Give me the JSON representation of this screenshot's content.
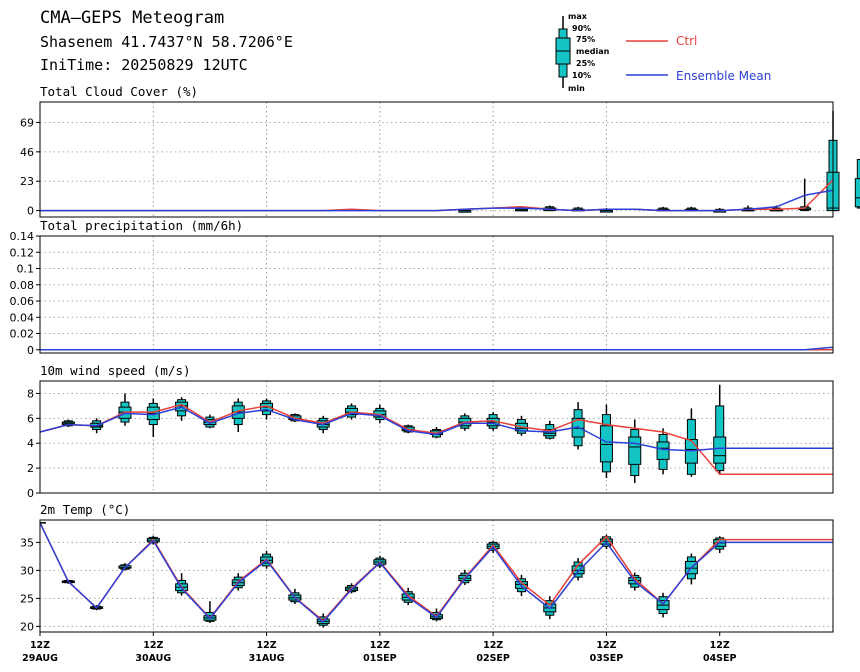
{
  "header": {
    "title": "CMA—GEPS Meteogram",
    "location": "Shasenem 41.7437°N 58.7206°E",
    "init_time": "IniTime: 20250829 12UTC"
  },
  "legend": {
    "box_labels": [
      "max",
      "90%",
      "75%",
      "median",
      "25%",
      "10%",
      "min"
    ],
    "ctrl_label": "Ctrl",
    "mean_label": "Ensemble Mean",
    "ctrl_color": "#e8403a",
    "mean_color": "#2d3fd6",
    "box_color": "#14c4c4"
  },
  "x_axis": {
    "tick_labels": [
      [
        "12Z",
        "29AUG"
      ],
      [
        "12Z",
        "30AUG"
      ],
      [
        "12Z",
        "31AUG"
      ],
      [
        "12Z",
        "01SEP"
      ],
      [
        "12Z",
        "02SEP"
      ],
      [
        "12Z",
        "03SEP"
      ],
      [
        "12Z",
        "04SEP"
      ]
    ]
  },
  "chart_data": [
    {
      "type": "line",
      "title": "Total Cloud Cover (%)",
      "ylim": [
        -5,
        85
      ],
      "yticks": [
        "0",
        "23",
        "46",
        "69"
      ],
      "x_hours": [
        0,
        6,
        12,
        18,
        24,
        30,
        36,
        42,
        48,
        54,
        60,
        66,
        72,
        78,
        84,
        90,
        96,
        102,
        108,
        114,
        120,
        126,
        132,
        138,
        144,
        150,
        156,
        162,
        168
      ],
      "series": [
        {
          "name": "Ctrl",
          "values": [
            0,
            0,
            0,
            0,
            0,
            0,
            0,
            0,
            0,
            0,
            0,
            1,
            0,
            0,
            0,
            1,
            2,
            3,
            1,
            0,
            1,
            1,
            0,
            0,
            0,
            1,
            1,
            2,
            24
          ]
        },
        {
          "name": "Ensemble Mean",
          "values": [
            0,
            0,
            0,
            0,
            0,
            0,
            0,
            0,
            0,
            0,
            0,
            0,
            0,
            0,
            0,
            1,
            2,
            2,
            1,
            0,
            1,
            1,
            0,
            0,
            0,
            1,
            3,
            12,
            16
          ]
        }
      ],
      "boxes": [
        [
          15,
          0,
          0,
          0,
          0,
          0,
          0,
          0
        ],
        [
          17,
          0,
          0,
          0,
          0,
          1,
          2,
          3
        ],
        [
          18,
          0,
          0,
          0,
          1,
          2,
          3,
          4
        ],
        [
          19,
          0,
          0,
          0,
          0,
          1,
          2,
          3
        ],
        [
          20,
          0,
          0,
          0,
          0,
          0,
          1,
          2
        ],
        [
          22,
          0,
          0,
          0,
          1,
          1,
          2,
          3
        ],
        [
          23,
          0,
          0,
          0,
          1,
          1,
          2,
          3
        ],
        [
          24,
          0,
          0,
          0,
          0,
          0,
          1,
          2
        ],
        [
          25,
          0,
          0,
          0,
          0,
          1,
          2,
          4
        ],
        [
          26,
          0,
          0,
          0,
          0,
          1,
          2,
          4
        ],
        [
          27,
          0,
          0,
          1,
          1,
          2,
          3,
          25
        ],
        [
          28,
          0,
          0,
          0,
          2,
          30,
          55,
          78
        ],
        [
          29,
          0,
          2,
          3,
          10,
          25,
          40,
          40
        ]
      ]
    },
    {
      "type": "line",
      "title": "Total precipitation (mm/6h)",
      "ylim": [
        -0.004,
        0.14
      ],
      "yticks": [
        "0",
        "0.02",
        "0.04",
        "0.06",
        "0.08",
        "0.1",
        "0.12",
        "0.14"
      ],
      "x_hours": [
        0,
        6,
        12,
        18,
        24,
        30,
        36,
        42,
        48,
        54,
        60,
        66,
        72,
        78,
        84,
        90,
        96,
        102,
        108,
        114,
        120,
        126,
        132,
        138,
        144,
        150,
        156,
        162,
        168
      ],
      "series": [
        {
          "name": "Ctrl",
          "values": [
            0,
            0,
            0,
            0,
            0,
            0,
            0,
            0,
            0,
            0,
            0,
            0,
            0,
            0,
            0,
            0,
            0,
            0,
            0,
            0,
            0,
            0,
            0,
            0,
            0,
            0,
            0,
            0,
            0
          ]
        },
        {
          "name": "Ensemble Mean",
          "values": [
            0,
            0,
            0,
            0,
            0,
            0,
            0,
            0,
            0,
            0,
            0,
            0,
            0,
            0,
            0,
            0,
            0,
            0,
            0,
            0,
            0,
            0,
            0,
            0,
            0,
            0,
            0,
            0,
            0.003
          ]
        }
      ],
      "boxes": []
    },
    {
      "type": "line",
      "title": "10m wind speed (m/s)",
      "ylim": [
        0,
        9
      ],
      "yticks": [
        "0",
        "2",
        "4",
        "6",
        "8"
      ],
      "x_hours": [
        0,
        6,
        12,
        18,
        24,
        30,
        36,
        42,
        48,
        54,
        60,
        66,
        72,
        78,
        84,
        90,
        96,
        102,
        108,
        114,
        120,
        126,
        132,
        138,
        144,
        150,
        156,
        162,
        168
      ],
      "series": [
        {
          "name": "Ctrl",
          "values": [
            4.9,
            5.5,
            5.4,
            6.5,
            6.5,
            7.1,
            5.7,
            6.6,
            7.0,
            6.0,
            5.6,
            6.5,
            6.3,
            5.1,
            4.8,
            5.7,
            5.8,
            5.3,
            5.0,
            5.9,
            5.5,
            5.2,
            4.9,
            4.2,
            1.5,
            1.5,
            1.5,
            1.5,
            1.5
          ]
        },
        {
          "name": "Ensemble Mean",
          "values": [
            4.9,
            5.5,
            5.4,
            6.4,
            6.3,
            6.9,
            5.6,
            6.4,
            6.7,
            5.9,
            5.5,
            6.4,
            6.2,
            5.0,
            4.7,
            5.6,
            5.6,
            5.0,
            4.9,
            5.3,
            4.1,
            4.0,
            3.5,
            3.4,
            3.6,
            3.6,
            3.6,
            3.6,
            3.6
          ]
        }
      ],
      "boxes": [
        [
          1,
          5.3,
          5.4,
          5.5,
          5.6,
          5.7,
          5.8,
          5.9
        ],
        [
          2,
          4.8,
          5.1,
          5.3,
          5.4,
          5.6,
          5.8,
          6.0
        ],
        [
          3,
          5.4,
          5.7,
          6.0,
          6.5,
          6.9,
          7.3,
          8.0
        ],
        [
          4,
          4.5,
          5.5,
          5.9,
          6.4,
          6.9,
          7.2,
          7.6
        ],
        [
          5,
          5.8,
          6.2,
          6.6,
          7.0,
          7.3,
          7.5,
          7.7
        ],
        [
          6,
          5.2,
          5.3,
          5.5,
          5.7,
          5.9,
          6.1,
          6.3
        ],
        [
          7,
          4.9,
          5.5,
          6.0,
          6.5,
          7.0,
          7.3,
          7.6
        ],
        [
          8,
          5.9,
          6.3,
          6.6,
          6.9,
          7.2,
          7.4,
          7.6
        ],
        [
          9,
          5.7,
          5.8,
          5.9,
          6.0,
          6.2,
          6.3,
          6.4
        ],
        [
          10,
          4.8,
          5.1,
          5.3,
          5.5,
          5.8,
          6.0,
          6.2
        ],
        [
          11,
          5.9,
          6.1,
          6.3,
          6.5,
          6.8,
          7.0,
          7.2
        ],
        [
          12,
          5.6,
          5.9,
          6.1,
          6.3,
          6.6,
          6.8,
          7.1
        ],
        [
          13,
          4.8,
          4.9,
          5.0,
          5.1,
          5.3,
          5.4,
          5.5
        ],
        [
          14,
          4.4,
          4.5,
          4.7,
          4.8,
          5.0,
          5.1,
          5.3
        ],
        [
          15,
          5.0,
          5.2,
          5.4,
          5.7,
          6.0,
          6.2,
          6.4
        ],
        [
          16,
          5.0,
          5.2,
          5.4,
          5.7,
          6.0,
          6.3,
          6.5
        ],
        [
          17,
          4.6,
          4.8,
          5.0,
          5.2,
          5.6,
          5.9,
          6.2
        ],
        [
          18,
          4.3,
          4.4,
          4.6,
          4.8,
          5.1,
          5.5,
          5.8
        ],
        [
          19,
          3.5,
          3.8,
          4.5,
          5.2,
          6.0,
          6.7,
          7.3
        ],
        [
          20,
          1.2,
          1.7,
          2.5,
          3.9,
          5.4,
          6.3,
          7.1
        ],
        [
          21,
          0.8,
          1.4,
          2.3,
          3.7,
          4.5,
          5.1,
          5.9
        ],
        [
          22,
          1.5,
          1.9,
          2.7,
          3.6,
          4.1,
          4.7,
          5.2
        ],
        [
          23,
          1.3,
          1.5,
          2.4,
          3.5,
          4.3,
          5.9,
          6.8
        ],
        [
          24,
          1.5,
          1.8,
          2.4,
          3.0,
          4.5,
          7.0,
          8.7
        ]
      ]
    },
    {
      "type": "line",
      "title": "2m Temp (°C)",
      "ylim": [
        19,
        39
      ],
      "yticks": [
        "20",
        "25",
        "30",
        "35"
      ],
      "x_hours": [
        0,
        6,
        12,
        18,
        24,
        30,
        36,
        42,
        48,
        54,
        60,
        66,
        72,
        78,
        84,
        90,
        96,
        102,
        108,
        114,
        120,
        126,
        132,
        138,
        144,
        150,
        156,
        162,
        168
      ],
      "series": [
        {
          "name": "Ctrl",
          "values": [
            38.5,
            28.0,
            23.3,
            30.5,
            35.5,
            27.0,
            21.5,
            28.0,
            32.0,
            25.2,
            21.0,
            26.8,
            31.5,
            25.5,
            21.8,
            28.7,
            34.5,
            27.8,
            23.8,
            31.0,
            36.0,
            28.5,
            24.0,
            30.5,
            35.5,
            35.5,
            35.5,
            35.5,
            35.5
          ]
        },
        {
          "name": "Ensemble Mean",
          "values": [
            38.5,
            28.0,
            23.3,
            30.5,
            35.3,
            26.8,
            21.4,
            27.8,
            31.8,
            25.1,
            20.8,
            26.6,
            31.4,
            25.2,
            21.6,
            28.5,
            34.2,
            27.2,
            23.2,
            29.8,
            35.0,
            28.0,
            24.0,
            30.5,
            35.0,
            35.0,
            35.0,
            35.0,
            35.0
          ]
        }
      ],
      "boxes": [
        [
          1,
          27.6,
          27.8,
          27.9,
          28.0,
          28.1,
          28.2,
          28.3
        ],
        [
          2,
          22.9,
          23.1,
          23.2,
          23.3,
          23.5,
          23.6,
          23.8
        ],
        [
          3,
          30.0,
          30.2,
          30.4,
          30.5,
          30.8,
          31.0,
          31.3
        ],
        [
          4,
          34.6,
          34.9,
          35.1,
          35.4,
          35.7,
          35.9,
          36.2
        ],
        [
          5,
          25.5,
          26.0,
          26.4,
          27.0,
          27.6,
          28.2,
          29.5
        ],
        [
          6,
          20.6,
          20.9,
          21.1,
          21.5,
          21.9,
          22.5,
          24.5
        ],
        [
          7,
          26.4,
          26.9,
          27.3,
          27.8,
          28.3,
          28.8,
          29.5
        ],
        [
          8,
          30.3,
          30.8,
          31.3,
          31.8,
          32.4,
          32.9,
          33.5
        ],
        [
          9,
          24.0,
          24.4,
          24.7,
          25.1,
          25.6,
          26.0,
          26.7
        ],
        [
          10,
          19.8,
          20.2,
          20.5,
          20.9,
          21.3,
          21.7,
          22.3
        ],
        [
          11,
          25.9,
          26.2,
          26.4,
          26.7,
          27.0,
          27.3,
          27.7
        ],
        [
          12,
          30.4,
          30.8,
          31.1,
          31.5,
          31.9,
          32.2,
          32.6
        ],
        [
          13,
          23.8,
          24.3,
          24.7,
          25.2,
          25.8,
          26.2,
          26.9
        ],
        [
          14,
          20.9,
          21.2,
          21.4,
          21.7,
          22.1,
          22.5,
          23.2
        ],
        [
          15,
          27.4,
          27.8,
          28.2,
          28.6,
          29.1,
          29.5,
          30.1
        ],
        [
          16,
          33.1,
          33.6,
          33.9,
          34.3,
          34.7,
          35.0,
          35.3
        ],
        [
          17,
          25.4,
          26.2,
          26.8,
          27.5,
          28.0,
          28.5,
          29.2
        ],
        [
          18,
          21.3,
          22.0,
          22.6,
          23.3,
          24.0,
          24.6,
          25.4
        ],
        [
          19,
          28.2,
          28.8,
          29.4,
          30.0,
          30.8,
          31.5,
          32.2
        ],
        [
          20,
          33.8,
          34.3,
          34.7,
          35.2,
          35.6,
          36.0,
          36.4
        ],
        [
          21,
          26.4,
          27.0,
          27.6,
          28.2,
          28.7,
          29.1,
          29.6
        ],
        [
          22,
          21.6,
          22.3,
          23.0,
          23.8,
          24.6,
          25.3,
          26.0
        ],
        [
          23,
          27.5,
          28.5,
          29.4,
          30.4,
          31.6,
          32.4,
          33.0
        ],
        [
          24,
          33.1,
          33.8,
          34.3,
          34.9,
          35.5,
          35.8,
          36.1
        ]
      ]
    }
  ]
}
